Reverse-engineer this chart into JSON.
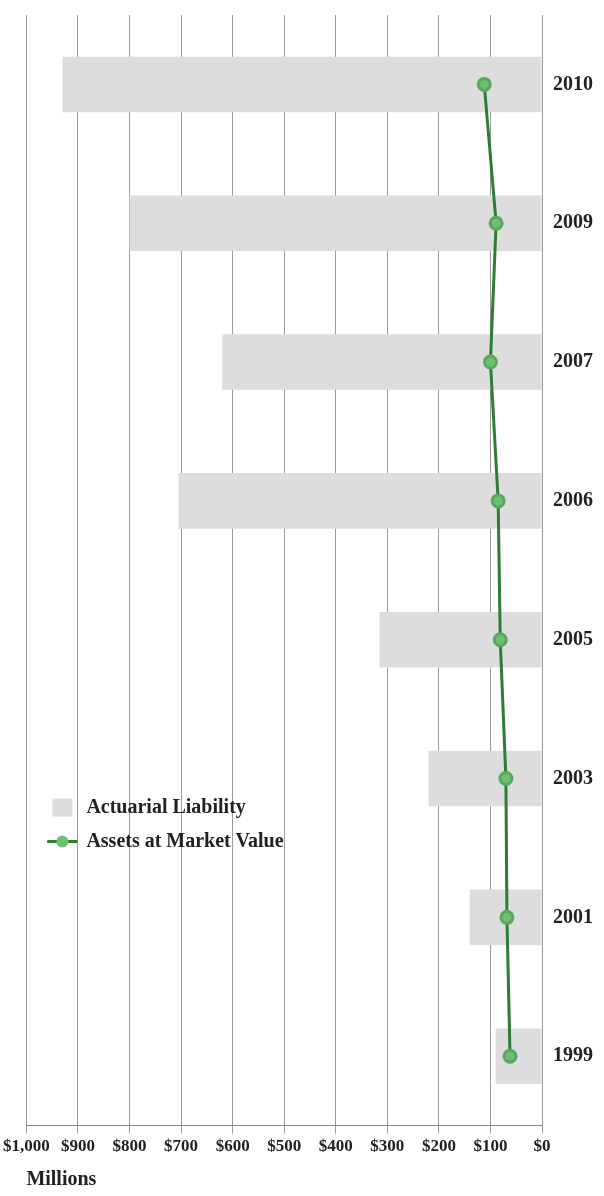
{
  "chart_data": {
    "type": "bar",
    "orientation": "horizontal",
    "xlabel": "Millions",
    "categories": [
      "2010",
      "2009",
      "2007",
      "2006",
      "2005",
      "2003",
      "2001",
      "1999"
    ],
    "series": [
      {
        "name": "Actuarial Liability",
        "color": "#dcdddc",
        "values": [
          930,
          800,
          620,
          705,
          315,
          220,
          140,
          90
        ]
      },
      {
        "name": "Assets at Market Value",
        "type": "line",
        "color": "#2f7d32",
        "values": [
          112,
          89,
          100,
          85,
          81,
          70,
          68,
          62
        ]
      }
    ],
    "xlim": [
      1000,
      0
    ],
    "xticks": [
      {
        "value": 1000,
        "label": "$1,000"
      },
      {
        "value": 900,
        "label": "$900"
      },
      {
        "value": 800,
        "label": "$800"
      },
      {
        "value": 700,
        "label": "$700"
      },
      {
        "value": 600,
        "label": "$600"
      },
      {
        "value": 500,
        "label": "$500"
      },
      {
        "value": 400,
        "label": "$400"
      },
      {
        "value": 300,
        "label": "$300"
      },
      {
        "value": 200,
        "label": "$200"
      },
      {
        "value": 100,
        "label": "$100"
      },
      {
        "value": 0,
        "label": "$0"
      }
    ],
    "grid": "x",
    "legend": "bottom left",
    "marker": "circle",
    "line_style": "solid"
  }
}
